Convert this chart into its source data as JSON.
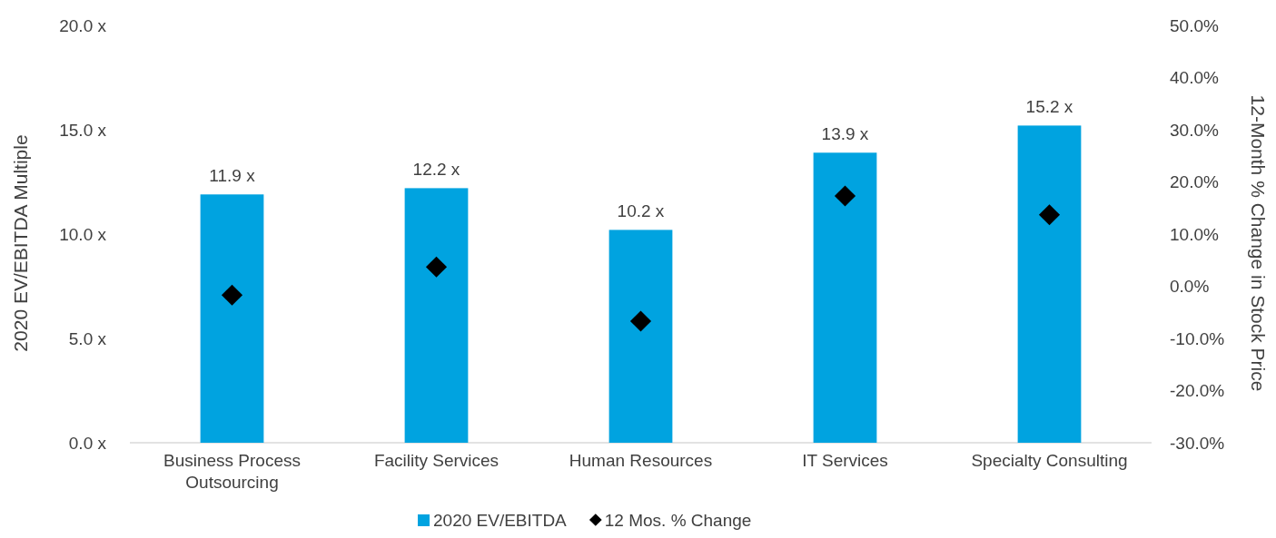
{
  "chart_data": {
    "type": "bar",
    "categories": [
      "Business Process Outsourcing",
      "Facility Services",
      "Human Resources",
      "IT Services",
      "Specialty Consulting"
    ],
    "series": [
      {
        "name": "2020 EV/EBITDA",
        "type": "bar",
        "color": "#00a3e0",
        "values": [
          11.9,
          12.2,
          10.2,
          13.9,
          15.2
        ],
        "value_labels": [
          "11.9 x",
          "12.2 x",
          "10.2 x",
          "13.9 x",
          "15.2 x"
        ]
      },
      {
        "name": "12 Mos. % Change",
        "type": "scatter",
        "axis": "y2",
        "color": "#000000",
        "marker": "diamond",
        "values": [
          -1.7,
          3.7,
          -6.7,
          17.3,
          13.7
        ]
      }
    ],
    "ylabel": "2020 EV/EBITDA Multiple",
    "y2label": "12-Month % Change in Stock Price",
    "ylim": [
      0,
      20
    ],
    "yticks": [
      {
        "value": 0,
        "label": "0.0 x"
      },
      {
        "value": 5,
        "label": "5.0 x"
      },
      {
        "value": 10,
        "label": "10.0 x"
      },
      {
        "value": 15,
        "label": "15.0 x"
      },
      {
        "value": 20,
        "label": "20.0 x"
      }
    ],
    "y2lim": [
      -30,
      50
    ],
    "y2ticks": [
      {
        "value": -30,
        "label": "-30.0%"
      },
      {
        "value": -20,
        "label": "-20.0%"
      },
      {
        "value": -10,
        "label": "-10.0%"
      },
      {
        "value": 0,
        "label": "0.0%"
      },
      {
        "value": 10,
        "label": "10.0%"
      },
      {
        "value": 20,
        "label": "20.0%"
      },
      {
        "value": 30,
        "label": "30.0%"
      },
      {
        "value": 40,
        "label": "40.0%"
      },
      {
        "value": 50,
        "label": "50.0%"
      }
    ],
    "grid": false,
    "legend": "bottom"
  }
}
